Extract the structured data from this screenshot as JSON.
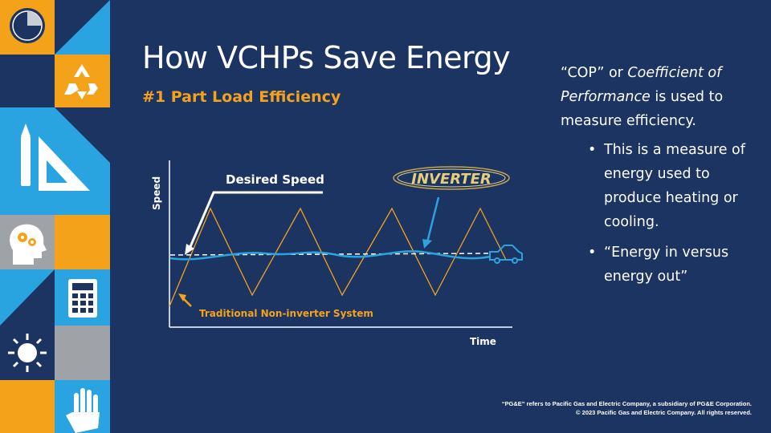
{
  "slide": {
    "title": "How VCHPs Save Energy",
    "subtitle": "#1 Part Load Efficiency"
  },
  "diagram": {
    "y_axis_label": "Speed",
    "x_axis_label": "Time",
    "desired_speed_label": "Desired Speed",
    "inverter_logo_text": "INVERTER",
    "traditional_label": "Traditional Non-inverter System",
    "colors": {
      "traditional": "#f5a21b",
      "inverter": "#2aa4e0",
      "desired": "#ffffff",
      "axes": "#ffffff"
    }
  },
  "body": {
    "intro_part1": "“COP” or ",
    "intro_italic1": "Coefficient of Performance",
    "intro_part2": " is used to measure efficiency.",
    "bullets": [
      "This is a measure of energy used to produce heating or cooling.",
      "“Energy in versus energy out”"
    ]
  },
  "footer": {
    "line1": "“PG&E” refers to Pacific Gas and Electric Company, a subsidiary of PG&E Corporation.",
    "line2": "© 2023 Pacific Gas and Electric Company. All rights reserved."
  },
  "sidebar_icons": [
    "pie-chart-icon",
    "recycle-icon",
    "pencil-ruler-icon",
    "head-gears-icon",
    "calculator-icon",
    "sun-icon",
    "hand-icon"
  ]
}
